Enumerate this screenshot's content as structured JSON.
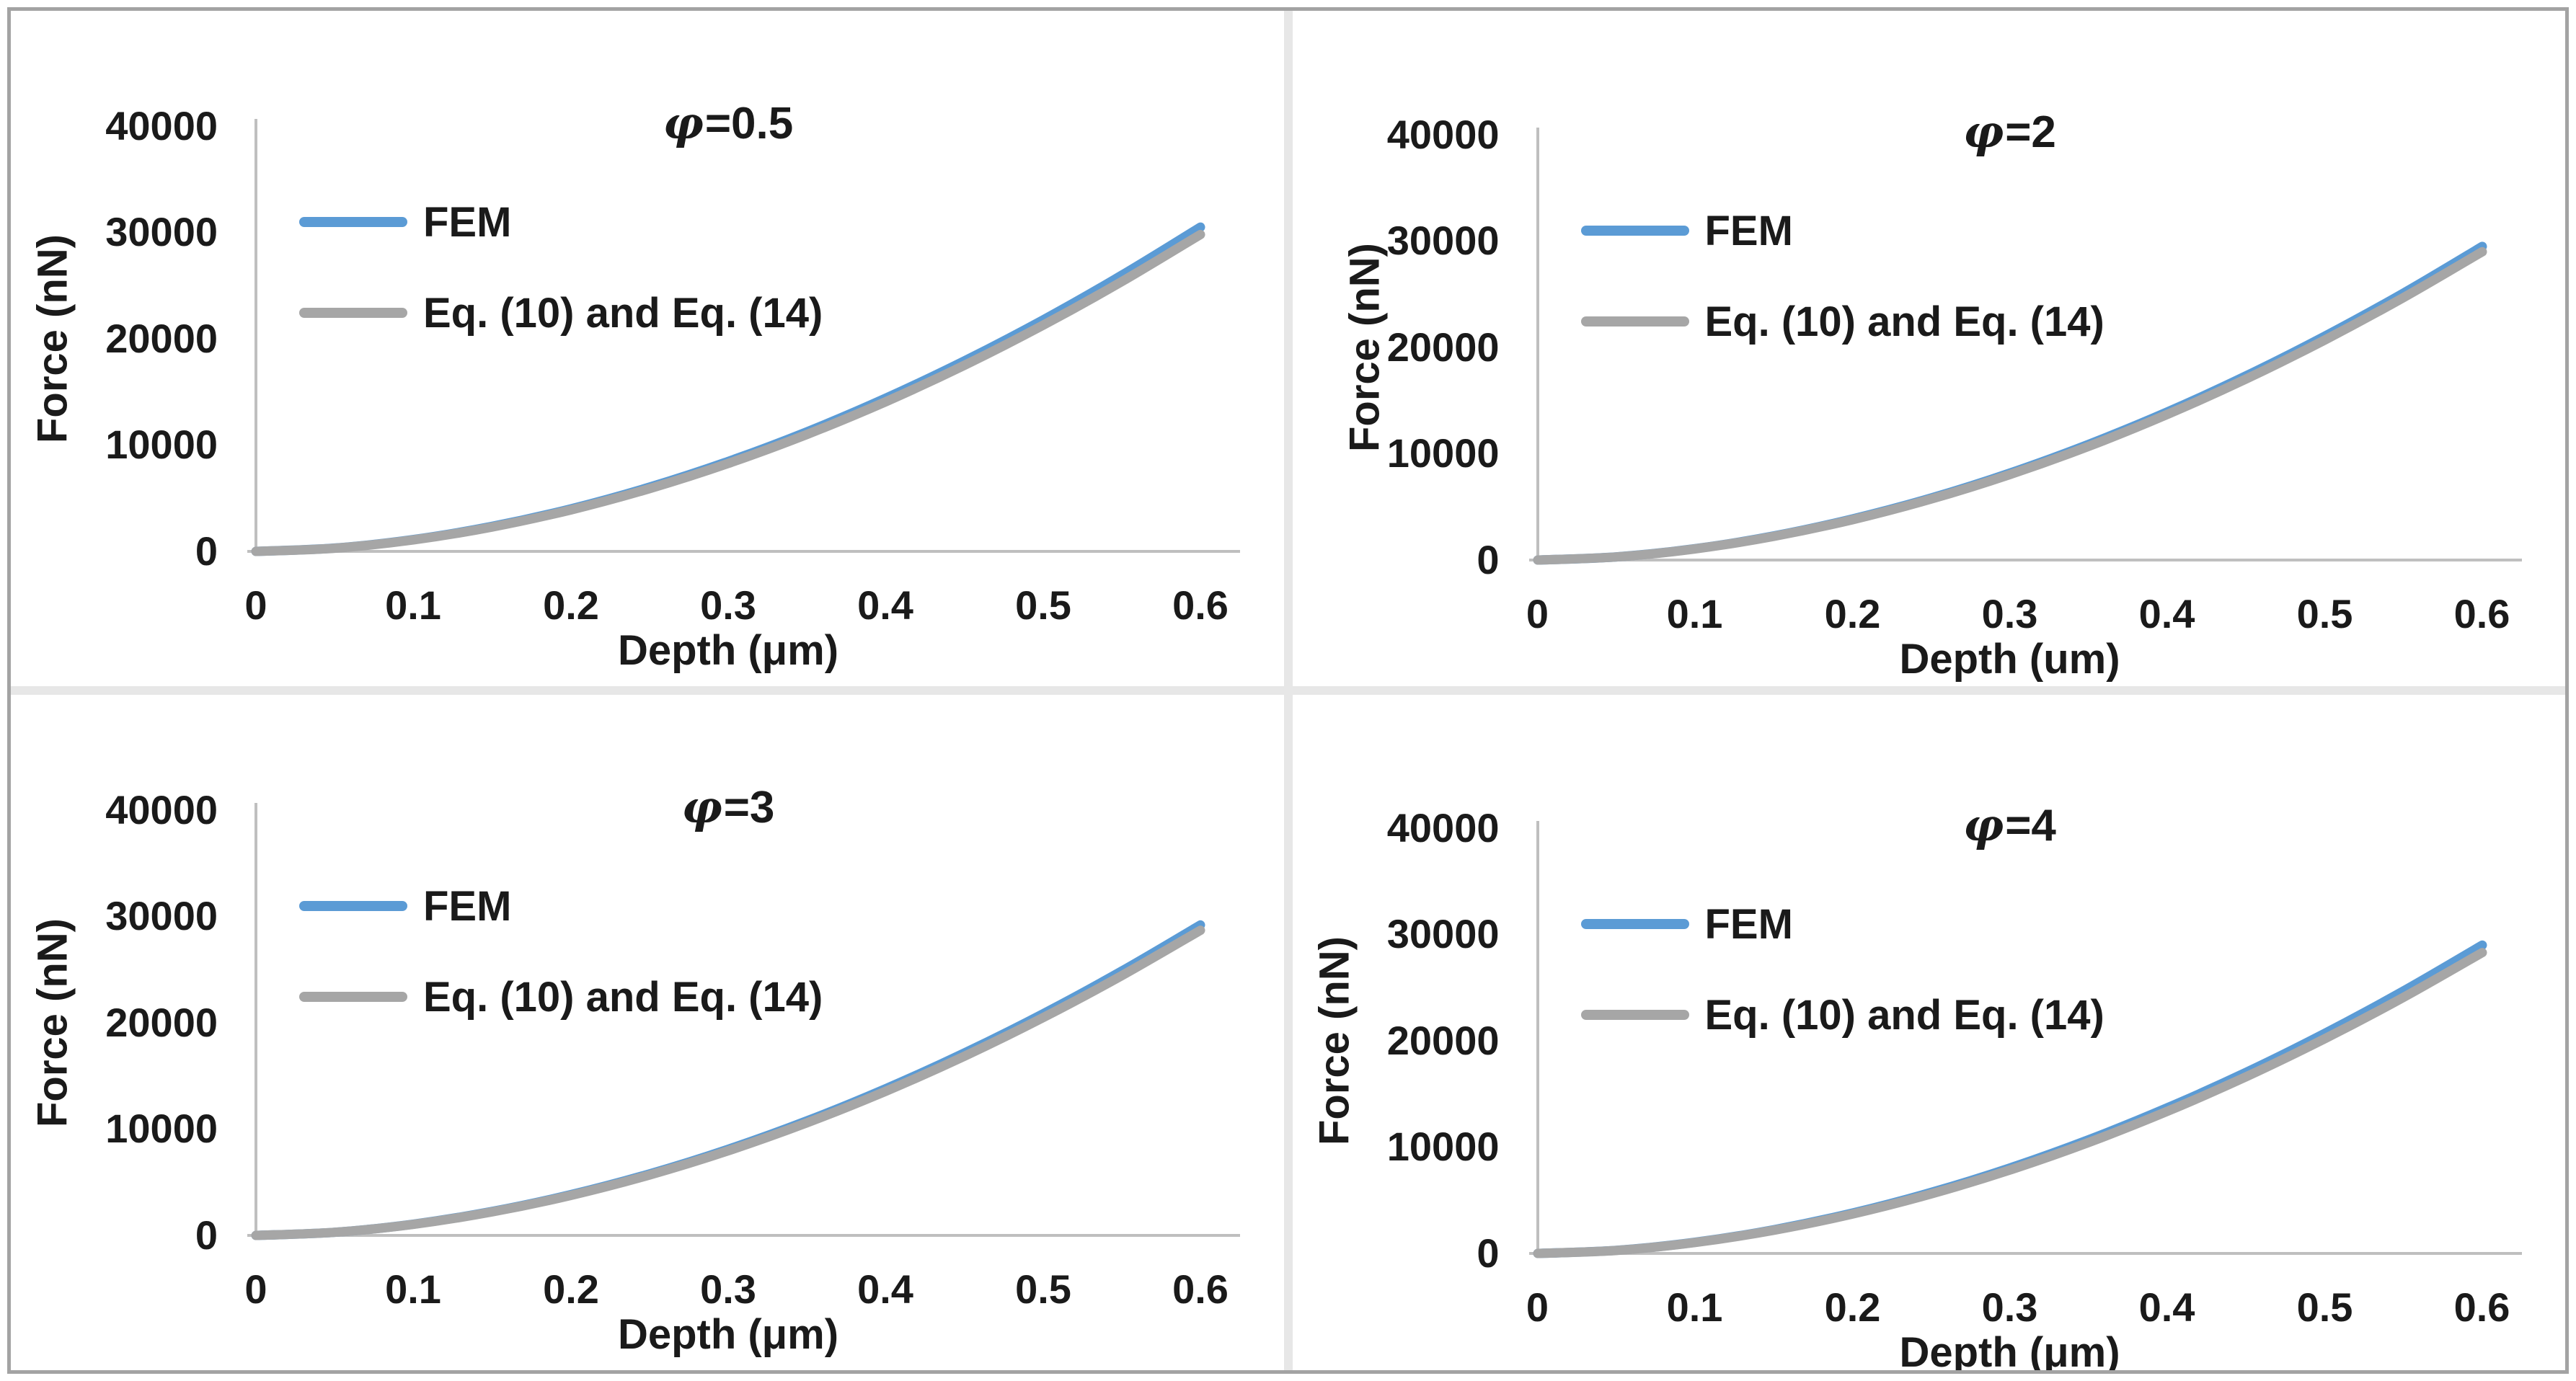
{
  "figure": {
    "background": "#ffffff",
    "frame_border_color": "#a3a3a3",
    "separator_color": "#e7e7e7"
  },
  "colors": {
    "fem_line": "#5b9bd5",
    "eq_line": "#a6a6a6",
    "axis_line": "#bfbfbf",
    "text": "#1a1a1a"
  },
  "charts": [
    {
      "title_phi": "φ",
      "title_rest": "=0.5",
      "ylabel": "Force (nN)",
      "xlabel": "Depth (μm)",
      "legend_fem": "FEM",
      "legend_eq": "Eq. (10) and Eq. (14)",
      "y_ticks": [
        "40000",
        "30000",
        "20000",
        "10000",
        "0"
      ],
      "x_ticks": [
        "0",
        "0.1",
        "0.2",
        "0.3",
        "0.4",
        "0.5",
        "0.6"
      ]
    },
    {
      "title_phi": "φ",
      "title_rest": "=2",
      "ylabel": "Force (nN)",
      "xlabel": "Depth (um)",
      "legend_fem": "FEM",
      "legend_eq": "Eq. (10) and Eq. (14)",
      "y_ticks": [
        "40000",
        "30000",
        "20000",
        "10000",
        "0"
      ],
      "x_ticks": [
        "0",
        "0.1",
        "0.2",
        "0.3",
        "0.4",
        "0.5",
        "0.6"
      ]
    },
    {
      "title_phi": "φ",
      "title_rest": "=3",
      "ylabel": "Force (nN)",
      "xlabel": "Depth (μm)",
      "legend_fem": "FEM",
      "legend_eq": "Eq. (10) and Eq. (14)",
      "y_ticks": [
        "40000",
        "30000",
        "20000",
        "10000",
        "0"
      ],
      "x_ticks": [
        "0",
        "0.1",
        "0.2",
        "0.3",
        "0.4",
        "0.5",
        "0.6"
      ]
    },
    {
      "title_phi": "φ",
      "title_rest": "=4",
      "ylabel": "Force (nN)",
      "xlabel": "Depth (μm)",
      "legend_fem": "FEM",
      "legend_eq": "Eq. (10) and Eq. (14)",
      "y_ticks": [
        "40000",
        "30000",
        "20000",
        "10000",
        "0"
      ],
      "x_ticks": [
        "0",
        "0.1",
        "0.2",
        "0.3",
        "0.4",
        "0.5",
        "0.6"
      ]
    }
  ],
  "chart_data": [
    {
      "type": "line",
      "title": "φ=0.5",
      "xlabel": "Depth (μm)",
      "ylabel": "Force (nN)",
      "xlim": [
        0,
        0.6
      ],
      "ylim": [
        0,
        40000
      ],
      "grid": false,
      "legend_position": "upper-left-inside",
      "x": [
        0,
        0.05,
        0.1,
        0.15,
        0.2,
        0.25,
        0.3,
        0.35,
        0.4,
        0.45,
        0.5,
        0.55,
        0.6
      ],
      "series": [
        {
          "name": "FEM",
          "values": [
            0,
            310,
            1110,
            2350,
            4000,
            6040,
            8460,
            11250,
            14400,
            17910,
            21770,
            25970,
            30500
          ]
        },
        {
          "name": "Eq. (10) and Eq. (14)",
          "values": [
            0,
            300,
            1080,
            2290,
            3900,
            5900,
            8270,
            11000,
            14070,
            17500,
            21270,
            25370,
            29800
          ]
        }
      ]
    },
    {
      "type": "line",
      "title": "φ=2",
      "xlabel": "Depth (um)",
      "ylabel": "Force (nN)",
      "xlim": [
        0,
        0.6
      ],
      "ylim": [
        0,
        40000
      ],
      "grid": false,
      "legend_position": "upper-left-inside",
      "x": [
        0,
        0.05,
        0.1,
        0.15,
        0.2,
        0.25,
        0.3,
        0.35,
        0.4,
        0.45,
        0.5,
        0.55,
        0.6
      ],
      "series": [
        {
          "name": "FEM",
          "values": [
            0,
            300,
            1070,
            2270,
            3870,
            5840,
            8180,
            10890,
            13930,
            17330,
            21060,
            25110,
            29500
          ]
        },
        {
          "name": "Eq. (10) and Eq. (14)",
          "values": [
            0,
            290,
            1050,
            2230,
            3800,
            5740,
            8050,
            10700,
            13700,
            17030,
            20700,
            24690,
            29000
          ]
        }
      ]
    },
    {
      "type": "line",
      "title": "φ=3",
      "xlabel": "Depth (μm)",
      "ylabel": "Force (nN)",
      "xlim": [
        0,
        0.6
      ],
      "ylim": [
        0,
        40000
      ],
      "grid": false,
      "legend_position": "upper-left-inside",
      "x": [
        0,
        0.05,
        0.1,
        0.15,
        0.2,
        0.25,
        0.3,
        0.35,
        0.4,
        0.45,
        0.5,
        0.55,
        0.6
      ],
      "series": [
        {
          "name": "FEM",
          "values": [
            0,
            290,
            1060,
            2250,
            3830,
            5780,
            8100,
            10770,
            13790,
            17150,
            20840,
            24860,
            29200
          ]
        },
        {
          "name": "Eq. (10) and Eq. (14)",
          "values": [
            0,
            290,
            1040,
            2210,
            3760,
            5680,
            7960,
            10590,
            13550,
            16850,
            20480,
            24430,
            28700
          ]
        }
      ]
    },
    {
      "type": "line",
      "title": "φ=4",
      "xlabel": "Depth (μm)",
      "ylabel": "Force (nN)",
      "xlim": [
        0,
        0.6
      ],
      "ylim": [
        0,
        40000
      ],
      "grid": false,
      "legend_position": "upper-left-inside",
      "x": [
        0,
        0.05,
        0.1,
        0.15,
        0.2,
        0.25,
        0.3,
        0.35,
        0.4,
        0.45,
        0.5,
        0.55,
        0.6
      ],
      "series": [
        {
          "name": "FEM",
          "values": [
            0,
            290,
            1050,
            2230,
            3800,
            5740,
            8040,
            10700,
            13700,
            17030,
            20700,
            24690,
            29000
          ]
        },
        {
          "name": "Eq. (10) and Eq. (14)",
          "values": [
            0,
            280,
            1030,
            2180,
            3710,
            5600,
            7850,
            10440,
            13370,
            16620,
            20200,
            24090,
            28300
          ]
        }
      ]
    }
  ]
}
